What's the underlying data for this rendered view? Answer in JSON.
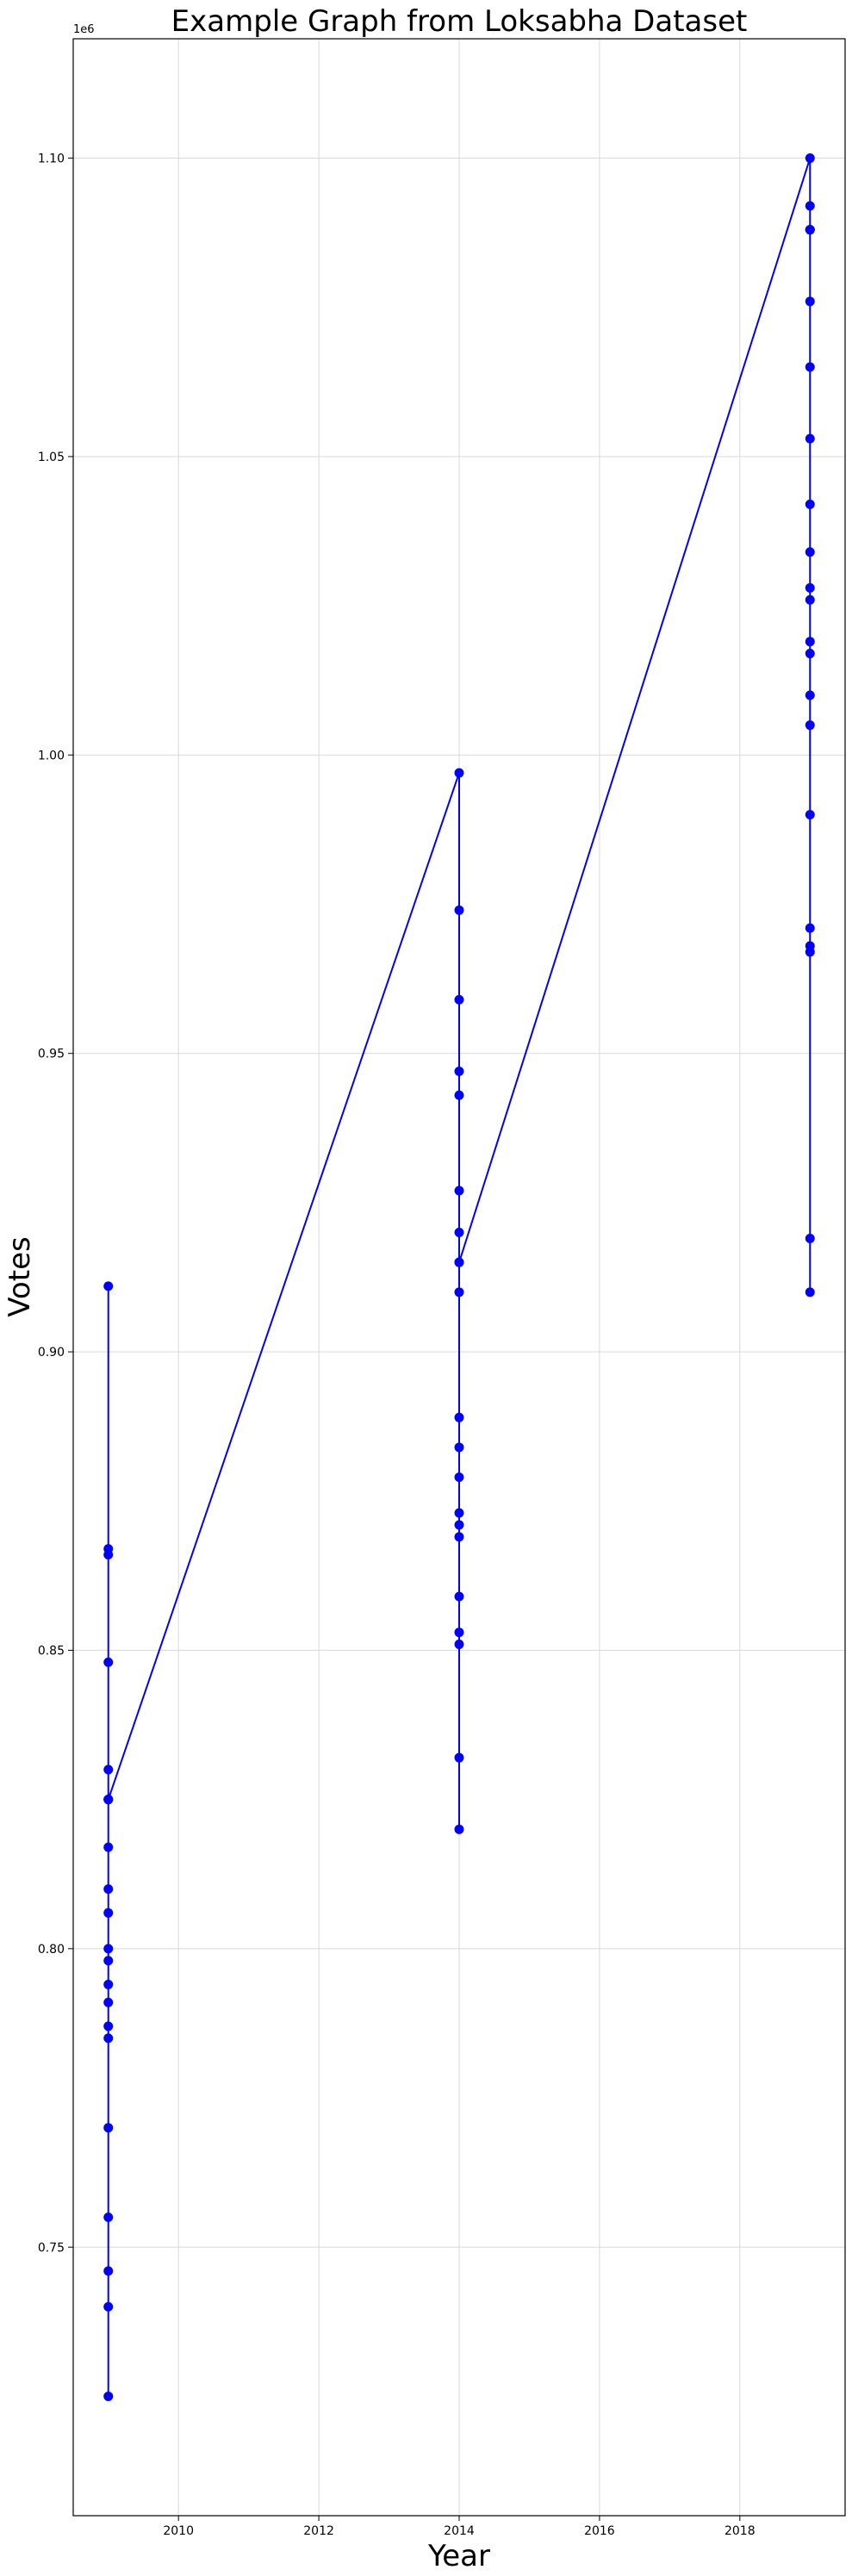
{
  "chart_data": {
    "type": "line",
    "title": "Example Graph from Loksabha Dataset",
    "xlabel": "Year",
    "ylabel": "Votes",
    "y_offset_label": "1e6",
    "xlim": [
      2008.5,
      2019.5
    ],
    "ylim": [
      705000,
      1120000
    ],
    "x_ticks": [
      2010,
      2012,
      2014,
      2016,
      2018
    ],
    "y_ticks": [
      750000,
      800000,
      850000,
      900000,
      950000,
      1000000,
      1050000,
      1100000
    ],
    "y_tick_labels": [
      "0.75",
      "0.80",
      "0.85",
      "0.90",
      "0.95",
      "1.00",
      "1.05",
      "1.10"
    ],
    "grid": true,
    "series_color": "#0000ff",
    "series": [
      {
        "x": [
          2009,
          2009,
          2009,
          2009,
          2009,
          2009,
          2009,
          2009,
          2009,
          2009,
          2009,
          2009,
          2009,
          2009,
          2009,
          2009,
          2009,
          2009,
          2009,
          2009,
          2009,
          2009,
          2014,
          2014,
          2014,
          2014,
          2014,
          2014,
          2014,
          2014,
          2014,
          2014,
          2014,
          2014,
          2014,
          2014,
          2014,
          2014,
          2014,
          2014,
          2014,
          2014,
          2014,
          2019,
          2019,
          2019,
          2019,
          2019,
          2019,
          2019,
          2019,
          2019,
          2019,
          2019,
          2019,
          2019,
          2019,
          2019,
          2019,
          2019,
          2019,
          2019,
          2019,
          2019,
          2019
        ],
        "y": [
          911000,
          867000,
          866000,
          848000,
          830000,
          817000,
          810000,
          806000,
          800000,
          798000,
          794000,
          791000,
          787000,
          785000,
          770000,
          755000,
          746000,
          740000,
          725000,
          825000,
          825000,
          825000,
          997000,
          974000,
          959000,
          947000,
          943000,
          927000,
          920000,
          910000,
          889000,
          884000,
          879000,
          873000,
          871000,
          869000,
          859000,
          853000,
          851000,
          832000,
          820000,
          915000,
          915000,
          1100000,
          1092000,
          1088000,
          1076000,
          1065000,
          1053000,
          1042000,
          1034000,
          1028000,
          1026000,
          1019000,
          1017000,
          1010000,
          1005000,
          990000,
          971000,
          968000,
          967000,
          919000,
          910000,
          1088000,
          1088000
        ]
      }
    ]
  }
}
